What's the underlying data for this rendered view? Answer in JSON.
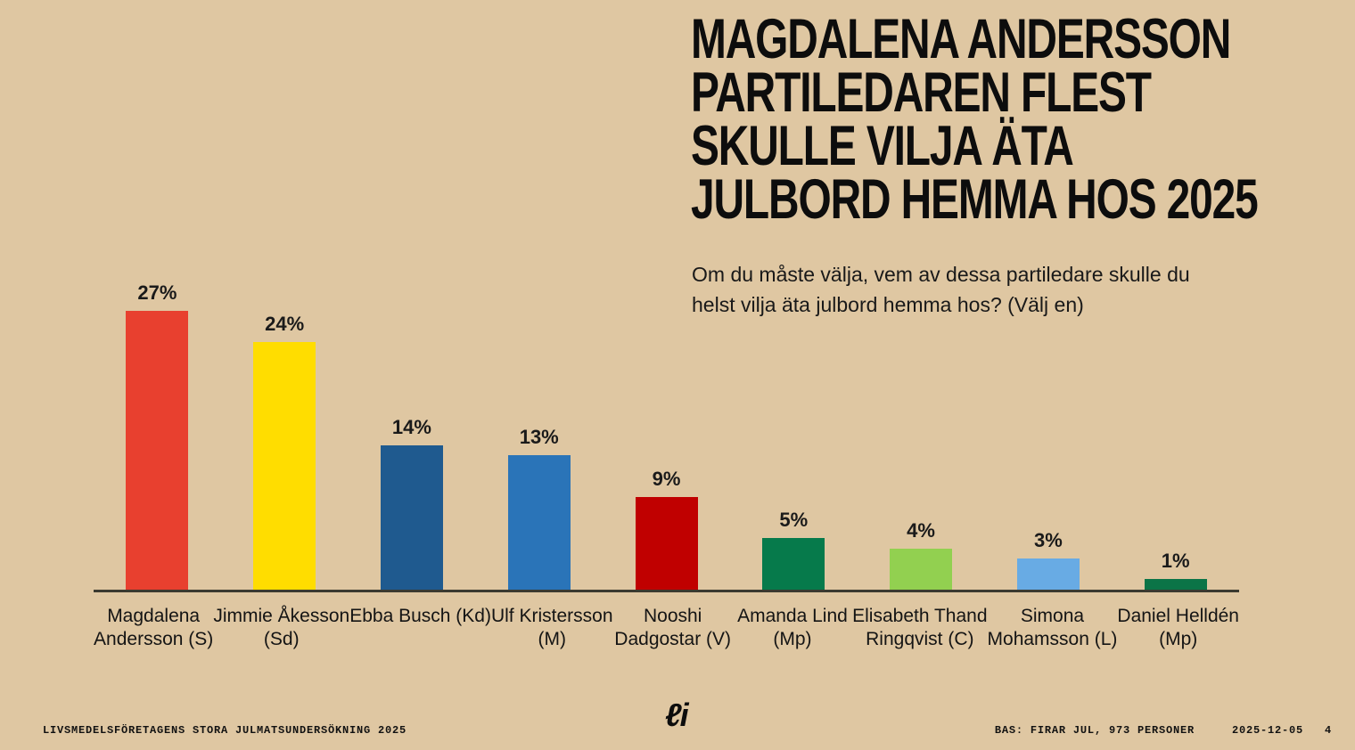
{
  "page": {
    "background": "#DFC7A2"
  },
  "header": {
    "title_lines": [
      "MAGDALENA ANDERSSON",
      "PARTILEDAREN FLEST",
      "SKULLE VILJA ÄTA",
      "JULBORD HEMMA HOS 2025"
    ],
    "subtitle_lines": [
      "Om du måste välja, vem av dessa partiledare skulle du",
      "helst vilja äta julbord hemma hos? (Välj en)"
    ]
  },
  "chart_data": {
    "type": "bar",
    "title": "MAGDALENA ANDERSSON PARTILEDAREN FLEST SKULLE VILJA ÄTA JULBORD HEMMA HOS 2025",
    "subtitle": "Om du måste välja, vem av dessa partiledare skulle du helst vilja äta julbord hemma hos? (Välj en)",
    "unit": "%",
    "ylim": [
      0,
      28
    ],
    "grid": false,
    "value_labels_shown": true,
    "axis_line_color": "#3B3A30",
    "categories": [
      "Magdalena Andersson (S)",
      "Jimmie Åkesson (Sd)",
      "Ebba Busch (Kd)",
      "Ulf Kristersson (M)",
      "Nooshi Dadgostar (V)",
      "Amanda Lind (Mp)",
      "Elisabeth Thand Ringqvist (C)",
      "Simona Mohamsson (L)",
      "Daniel Helldén (Mp)"
    ],
    "values": [
      27,
      24,
      14,
      13,
      9,
      5,
      4,
      3,
      1
    ],
    "points": [
      {
        "category": "Magdalena Andersson (S)",
        "category_lines": [
          "Magdalena",
          "Andersson (S)"
        ],
        "value": 27,
        "label": "27%",
        "color": "#E8402F"
      },
      {
        "category": "Jimmie Åkesson (Sd)",
        "category_lines": [
          "Jimmie Åkesson",
          "(Sd)"
        ],
        "value": 24,
        "label": "24%",
        "color": "#FFDD00"
      },
      {
        "category": "Ebba Busch (Kd)",
        "category_lines": [
          "Ebba Busch (Kd)"
        ],
        "value": 14,
        "label": "14%",
        "color": "#1F5A8F"
      },
      {
        "category": "Ulf Kristersson (M)",
        "category_lines": [
          "Ulf Kristersson",
          "(M)"
        ],
        "value": 13,
        "label": "13%",
        "color": "#2A74B8"
      },
      {
        "category": "Nooshi Dadgostar (V)",
        "category_lines": [
          "Nooshi",
          "Dadgostar (V)"
        ],
        "value": 9,
        "label": "9%",
        "color": "#C00000"
      },
      {
        "category": "Amanda Lind (Mp)",
        "category_lines": [
          "Amanda Lind",
          "(Mp)"
        ],
        "value": 5,
        "label": "5%",
        "color": "#067A4B"
      },
      {
        "category": "Elisabeth Thand Ringqvist (C)",
        "category_lines": [
          "Elisabeth Thand",
          "Ringqvist (C)"
        ],
        "value": 4,
        "label": "4%",
        "color": "#92D050"
      },
      {
        "category": "Simona Mohamsson (L)",
        "category_lines": [
          "Simona",
          "Mohamsson (L)"
        ],
        "value": 3,
        "label": "3%",
        "color": "#68ABE4"
      },
      {
        "category": "Daniel Helldén (Mp)",
        "category_lines": [
          "Daniel Helldén",
          "(Mp)"
        ],
        "value": 1,
        "label": "1%",
        "color": "#0B7447"
      }
    ]
  },
  "footer": {
    "left": "LIVSMEDELSFÖRETAGENS STORA JULMATSUNDERSÖKNING 2025",
    "logo": "ℓi",
    "bas": "BAS: FIRAR JUL, 973 PERSONER",
    "date": "2025-12-05",
    "page": "4"
  }
}
